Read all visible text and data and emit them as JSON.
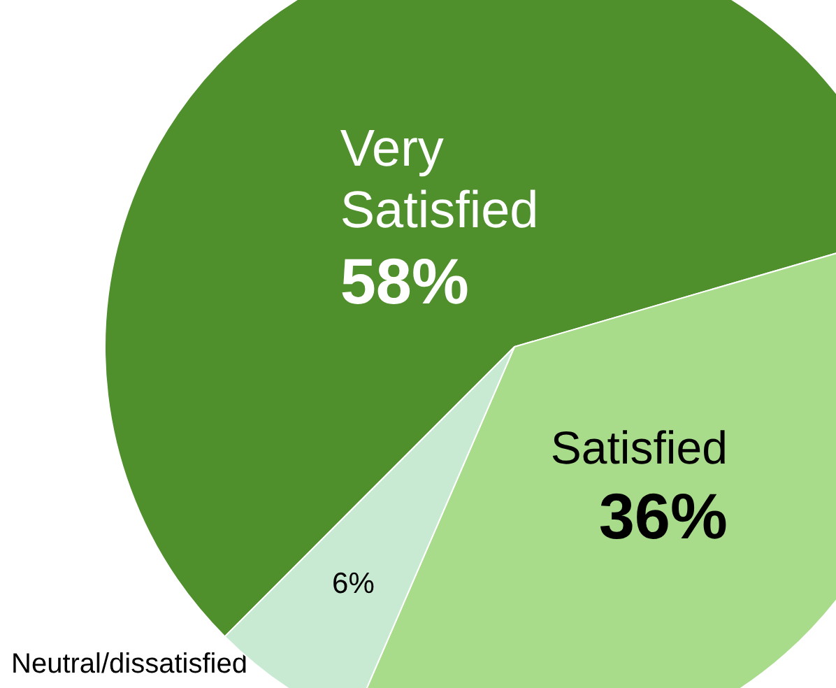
{
  "chart_data": {
    "type": "pie",
    "categories": [
      "Very Satisfied",
      "Satisfied",
      "Neutral/dissatisfied"
    ],
    "values": [
      58,
      36,
      6
    ],
    "colors": [
      "#4f8f2c",
      "#a8db8a",
      "#c9ead2"
    ],
    "value_labels": [
      "58%",
      "36%",
      "6%"
    ]
  }
}
